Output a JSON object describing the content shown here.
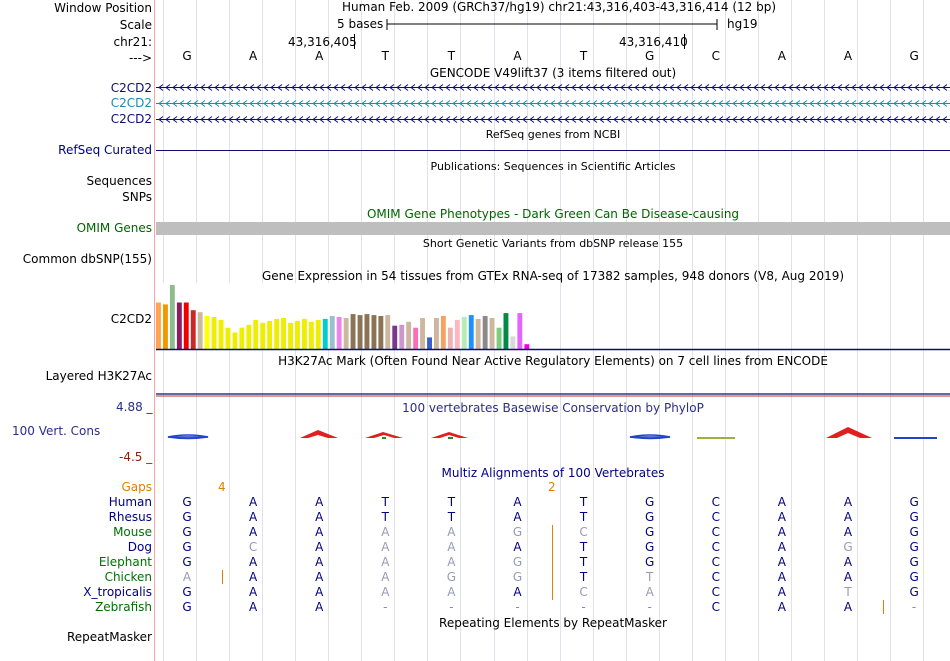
{
  "header": {
    "window_position_label": "Window Position",
    "window_position_value": "Human Feb. 2009 (GRCh37/hg19)   chr21:43,316,403-43,316,414 (12 bp)",
    "scale_label": "Scale",
    "scale_value": "5 bases",
    "scale_assembly": "hg19",
    "chrom_label": "chr21:",
    "coord_1": "43,316,405",
    "coord_2": "43,316,410",
    "strand_label": "--->"
  },
  "sequence": [
    "G",
    "A",
    "A",
    "T",
    "T",
    "A",
    "T",
    "G",
    "C",
    "A",
    "A",
    "G"
  ],
  "tracks": {
    "gencode": {
      "title": "GENCODE V49lift37 (3 items filtered out)",
      "items": [
        {
          "label": "C2CD2",
          "color": "#0c0c78"
        },
        {
          "label": "C2CD2",
          "color": "#1a8cb5"
        },
        {
          "label": "C2CD2",
          "color": "#0c0c78"
        }
      ]
    },
    "refseq": {
      "title": "RefSeq genes from NCBI",
      "label": "RefSeq Curated"
    },
    "publications": {
      "title": "Publications: Sequences in Scientific Articles",
      "label_1": "Sequences",
      "label_2": "SNPs"
    },
    "omim": {
      "title": "OMIM Gene Phenotypes - Dark Green Can Be Disease-causing",
      "label": "OMIM Genes"
    },
    "dbsnp": {
      "title": "Short Genetic Variants from dbSNP release 155",
      "label": "Common dbSNP(155)"
    },
    "gtex": {
      "title": "Gene Expression in 54 tissues from GTEx RNA-seq of 17382 samples, 948 donors (V8, Aug 2019)",
      "label": "C2CD2",
      "values": [
        48,
        46,
        66,
        48,
        48,
        40,
        38,
        34,
        33,
        30,
        22,
        17,
        22,
        25,
        30,
        27,
        29,
        31,
        32,
        27,
        29,
        31,
        28,
        30,
        31,
        34,
        33,
        32,
        36,
        35,
        36,
        35,
        34,
        35,
        24,
        25,
        28,
        22,
        32,
        12,
        32,
        34,
        22,
        30,
        33,
        35,
        31,
        34,
        32,
        22,
        37,
        13,
        37,
        5
      ],
      "colors": [
        "#ffa54f",
        "#ee9a00",
        "#8fbc8f",
        "#8b1c62",
        "#ee0000",
        "#cd2626",
        "#cdb79e",
        "#ffff00",
        "#eeee00",
        "#eeee00",
        "#eeee00",
        "#eeee00",
        "#eeee00",
        "#eeee00",
        "#eeee00",
        "#eeee00",
        "#eeee00",
        "#eeee00",
        "#eeee00",
        "#eeee00",
        "#eeee00",
        "#eeee00",
        "#eeee00",
        "#eeee00",
        "#00cdcd",
        "#9ac0cd",
        "#ee82ee",
        "#cdb79e",
        "#8b7355",
        "#8b7355",
        "#8b7355",
        "#8b7355",
        "#8b7355",
        "#cdb79e",
        "#7a378b",
        "#cd96cd",
        "#cdb79e",
        "#ff6eb4",
        "#cdb79e",
        "#3a5fcd",
        "#cdb79e",
        "#f4a460",
        "#eeb4b4",
        "#ffb6c1",
        "#b4eeb4",
        "#1e90ff",
        "#cdb79e",
        "#8b8989",
        "#cdb79e",
        "#7ccd7c",
        "#008b45",
        "#d9d9d9",
        "#e066ff",
        "#ee00ee"
      ]
    },
    "h3k27ac": {
      "title": "H3K27Ac Mark (Often Found Near Active Regulatory Elements) on 7 cell lines from ENCODE",
      "label": "Layered H3K27Ac"
    },
    "phylop": {
      "title": "100 vertebrates Basewise Conservation by PhyloP",
      "label": "100 Vert. Cons",
      "max": "4.88 _",
      "min": "-4.5 _"
    },
    "multiz": {
      "title": "Multiz Alignments of 100 Vertebrates",
      "gaps_label": "Gaps",
      "gap_values": [
        "4",
        "2"
      ],
      "species": [
        {
          "name": "Human",
          "color": "#000080",
          "bases": [
            "G",
            "A",
            "A",
            "T",
            "T",
            "A",
            "T",
            "G",
            "C",
            "A",
            "A",
            "G"
          ]
        },
        {
          "name": "Rhesus",
          "color": "#000080",
          "bases": [
            "G",
            "A",
            "A",
            "T",
            "T",
            "A",
            "T",
            "G",
            "C",
            "A",
            "A",
            "G"
          ]
        },
        {
          "name": "Mouse",
          "color": "#007000",
          "bases": [
            "G",
            "A",
            "A",
            "A",
            "A",
            "G",
            "C",
            "G",
            "C",
            "A",
            "A",
            "G"
          ]
        },
        {
          "name": "Dog",
          "color": "#000080",
          "bases": [
            "G",
            "C",
            "A",
            "A",
            "A",
            "A",
            "T",
            "G",
            "C",
            "A",
            "G",
            "G"
          ]
        },
        {
          "name": "Elephant",
          "color": "#007000",
          "bases": [
            "G",
            "A",
            "A",
            "A",
            "A",
            "G",
            "T",
            "G",
            "C",
            "A",
            "A",
            "G"
          ]
        },
        {
          "name": "Chicken",
          "color": "#007000",
          "bases": [
            "A",
            "A",
            "A",
            "A",
            "G",
            "G",
            "T",
            "T",
            "C",
            "A",
            "A",
            "G"
          ]
        },
        {
          "name": "X_tropicalis",
          "color": "#000080",
          "bases": [
            "G",
            "A",
            "A",
            "A",
            "A",
            "A",
            "C",
            "A",
            "C",
            "A",
            "T",
            "G"
          ]
        },
        {
          "name": "Zebrafish",
          "color": "#007000",
          "bases": [
            "G",
            "A",
            "A",
            "-",
            "-",
            "-",
            "-",
            "-",
            "C",
            "A",
            "A",
            "-"
          ]
        }
      ]
    },
    "repeatmasker": {
      "title": "Repeating Elements by RepeatMasker",
      "label": "RepeatMasker"
    }
  }
}
